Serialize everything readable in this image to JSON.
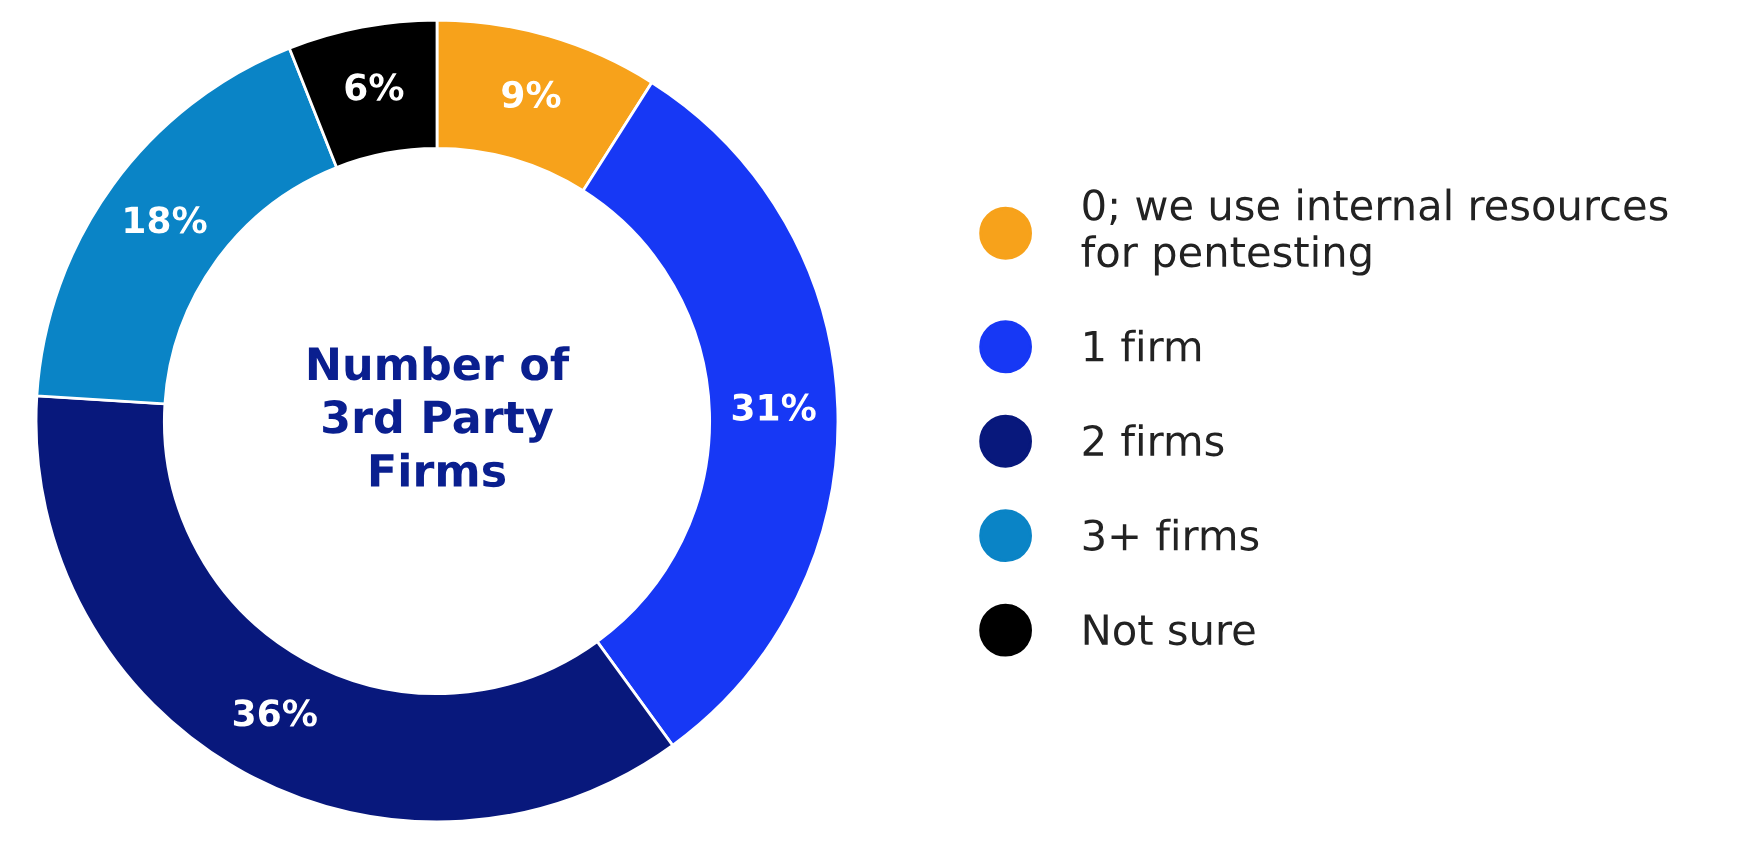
{
  "chart_data": {
    "type": "donut",
    "title": "Number of\n3rd Party\nFirms",
    "categories": [
      "0; we use internal resources\nfor pentesting",
      "1 firm",
      "2 firms",
      "3+ firms",
      "Not sure"
    ],
    "values": [
      9,
      31,
      36,
      18,
      6
    ],
    "colors": [
      "#f7a21b",
      "#1738f5",
      "#08187c",
      "#0a84c6",
      "#000000"
    ],
    "value_labels": [
      "9%",
      "31%",
      "36%",
      "18%",
      "6%"
    ],
    "legend": "right"
  }
}
